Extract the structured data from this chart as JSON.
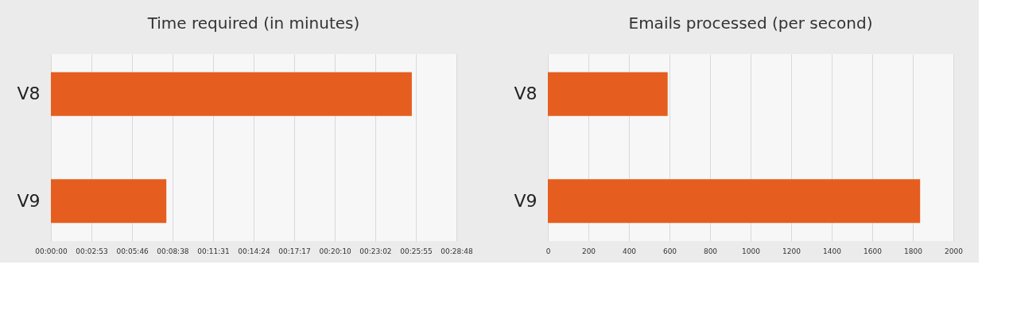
{
  "chart_data": [
    {
      "type": "bar",
      "orientation": "horizontal",
      "title": "Time required (in minutes)",
      "categories": [
        "V8",
        "V9"
      ],
      "values": [
        1538,
        492
      ],
      "color": "#e55e1f",
      "xlim": [
        0,
        1728
      ],
      "xticks": [
        {
          "value": 0,
          "label": "00:00:00"
        },
        {
          "value": 173,
          "label": "00:02:53"
        },
        {
          "value": 346,
          "label": "00:05:46"
        },
        {
          "value": 518,
          "label": "00:08:38"
        },
        {
          "value": 691,
          "label": "00:11:31"
        },
        {
          "value": 864,
          "label": "00:14:24"
        },
        {
          "value": 1037,
          "label": "00:17:17"
        },
        {
          "value": 1210,
          "label": "00:20:10"
        },
        {
          "value": 1382,
          "label": "00:23:02"
        },
        {
          "value": 1555,
          "label": "00:25:55"
        },
        {
          "value": 1728,
          "label": "00:28:48"
        }
      ],
      "grid": "x"
    },
    {
      "type": "bar",
      "orientation": "horizontal",
      "title": "Emails processed (per second)",
      "categories": [
        "V8",
        "V9"
      ],
      "values": [
        591,
        1836
      ],
      "color": "#e55e1f",
      "xlim": [
        0,
        2000
      ],
      "xticks": [
        0,
        200,
        400,
        600,
        800,
        1000,
        1200,
        1400,
        1600,
        1800,
        2000
      ],
      "grid": "x"
    }
  ]
}
